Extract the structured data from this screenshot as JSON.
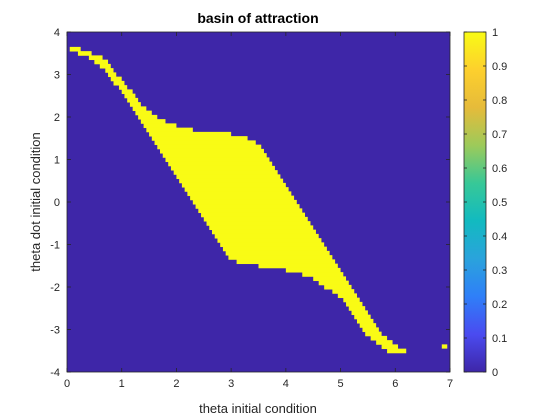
{
  "chart_data": {
    "type": "heatmap",
    "title": "basin of attraction",
    "xlabel": "theta initial condition",
    "ylabel": "theta dot initial condition",
    "xlim": [
      0,
      7
    ],
    "ylim": [
      -4,
      4
    ],
    "xticks": [
      0,
      1,
      2,
      3,
      4,
      5,
      6,
      7
    ],
    "xtick_labels": [
      "0",
      "1",
      "2",
      "3",
      "4",
      "5",
      "6",
      "7"
    ],
    "yticks": [
      -4,
      -3,
      -2,
      -1,
      0,
      1,
      2,
      3,
      4
    ],
    "ytick_labels": [
      "-4",
      "-3",
      "-2",
      "-1",
      "0",
      "1",
      "2",
      "3",
      "4"
    ],
    "grid": false,
    "colorbar": {
      "range": [
        0,
        1
      ],
      "ticks": [
        0,
        0.1,
        0.2,
        0.3,
        0.4,
        0.5,
        0.6,
        0.7,
        0.8,
        0.9,
        1
      ],
      "tick_labels": [
        "0",
        "0.1",
        "0.2",
        "0.3",
        "0.4",
        "0.5",
        "0.6",
        "0.7",
        "0.8",
        "0.9",
        "1"
      ],
      "colormap": [
        "#3e26a8",
        "#4a4bf0",
        "#2f7ff8",
        "#2aa3dc",
        "#12bac0",
        "#37c897",
        "#9dca5a",
        "#e6bb3a",
        "#fdd02d",
        "#f9fb15"
      ]
    },
    "colors": {
      "zero": "#3e26a8",
      "one": "#f9fb15"
    },
    "grid_resolution": {
      "x_step": 0.1,
      "y_step": 0.1
    },
    "value_one_region": {
      "description_rows": "each entry: [theta_dot, theta_min, theta_max] where value = 1",
      "rows": [
        [
          3.6,
          0.05,
          0.25
        ],
        [
          3.5,
          0.2,
          0.45
        ],
        [
          3.4,
          0.4,
          0.65
        ],
        [
          3.3,
          0.5,
          0.75
        ],
        [
          3.2,
          0.6,
          0.8
        ],
        [
          3.1,
          0.7,
          0.85
        ],
        [
          3.0,
          0.75,
          0.9
        ],
        [
          2.9,
          0.8,
          1.0
        ],
        [
          2.8,
          0.85,
          1.05
        ],
        [
          2.7,
          0.95,
          1.1
        ],
        [
          2.6,
          1.0,
          1.2
        ],
        [
          2.5,
          1.05,
          1.25
        ],
        [
          2.4,
          1.1,
          1.3
        ],
        [
          2.3,
          1.15,
          1.35
        ],
        [
          2.2,
          1.2,
          1.45
        ],
        [
          2.1,
          1.25,
          1.55
        ],
        [
          2.0,
          1.3,
          1.65
        ],
        [
          1.9,
          1.35,
          1.8
        ],
        [
          1.8,
          1.4,
          2.0
        ],
        [
          1.7,
          1.45,
          2.3
        ],
        [
          1.6,
          1.5,
          3.0
        ],
        [
          1.5,
          1.55,
          3.3
        ],
        [
          1.4,
          1.6,
          3.45
        ],
        [
          1.3,
          1.65,
          3.55
        ],
        [
          1.2,
          1.7,
          3.6
        ],
        [
          1.1,
          1.75,
          3.65
        ],
        [
          1.0,
          1.8,
          3.7
        ],
        [
          0.9,
          1.85,
          3.75
        ],
        [
          0.8,
          1.9,
          3.8
        ],
        [
          0.7,
          1.95,
          3.85
        ],
        [
          0.6,
          2.0,
          3.9
        ],
        [
          0.5,
          2.05,
          3.95
        ],
        [
          0.4,
          2.1,
          4.0
        ],
        [
          0.3,
          2.15,
          4.05
        ],
        [
          0.2,
          2.2,
          4.1
        ],
        [
          0.1,
          2.25,
          4.15
        ],
        [
          0.0,
          2.3,
          4.2
        ],
        [
          -0.1,
          2.35,
          4.25
        ],
        [
          -0.2,
          2.4,
          4.3
        ],
        [
          -0.3,
          2.45,
          4.35
        ],
        [
          -0.4,
          2.5,
          4.4
        ],
        [
          -0.5,
          2.55,
          4.45
        ],
        [
          -0.6,
          2.6,
          4.5
        ],
        [
          -0.7,
          2.65,
          4.55
        ],
        [
          -0.8,
          2.7,
          4.6
        ],
        [
          -0.9,
          2.75,
          4.65
        ],
        [
          -1.0,
          2.8,
          4.7
        ],
        [
          -1.1,
          2.85,
          4.75
        ],
        [
          -1.2,
          2.9,
          4.8
        ],
        [
          -1.3,
          2.95,
          4.85
        ],
        [
          -1.4,
          3.1,
          4.9
        ],
        [
          -1.5,
          3.5,
          4.95
        ],
        [
          -1.6,
          4.0,
          5.0
        ],
        [
          -1.7,
          4.3,
          5.05
        ],
        [
          -1.8,
          4.5,
          5.1
        ],
        [
          -1.9,
          4.6,
          5.15
        ],
        [
          -2.0,
          4.7,
          5.2
        ],
        [
          -2.1,
          4.85,
          5.25
        ],
        [
          -2.2,
          4.95,
          5.3
        ],
        [
          -2.3,
          5.05,
          5.35
        ],
        [
          -2.4,
          5.1,
          5.4
        ],
        [
          -2.5,
          5.15,
          5.45
        ],
        [
          -2.6,
          5.2,
          5.5
        ],
        [
          -2.7,
          5.25,
          5.55
        ],
        [
          -2.8,
          5.3,
          5.6
        ],
        [
          -2.9,
          5.35,
          5.65
        ],
        [
          -3.0,
          5.4,
          5.7
        ],
        [
          -3.1,
          5.45,
          5.75
        ],
        [
          -3.2,
          5.55,
          5.85
        ],
        [
          -3.3,
          5.65,
          5.95
        ],
        [
          -3.4,
          5.75,
          6.05
        ],
        [
          -3.5,
          5.85,
          6.2
        ]
      ],
      "isolated_cells": [
        [
          6.9,
          -3.4
        ]
      ]
    }
  }
}
